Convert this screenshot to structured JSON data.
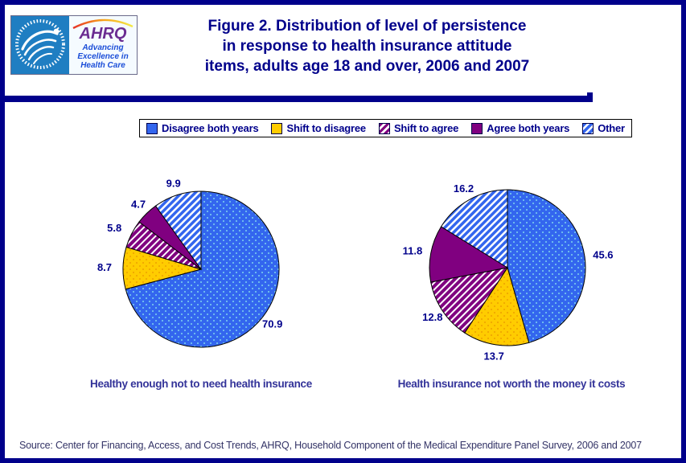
{
  "header": {
    "title_lines": [
      "Figure 2. Distribution of level of persistence",
      "in response to health insurance attitude",
      "items, adults age 18 and over, 2006 and 2007"
    ],
    "logo": {
      "seal_ring_text": "DEPARTMENT OF HEALTH & HUMAN SERVICES - USA",
      "wordmark": "AHRQ",
      "tagline_lines": [
        "Advancing",
        "Excellence in",
        "Health Care"
      ]
    }
  },
  "legend": {
    "items": [
      {
        "label": "Disagree both years",
        "swatch": "blue-solid"
      },
      {
        "label": "Shift to disagree",
        "swatch": "yellow-solid"
      },
      {
        "label": "Shift to agree",
        "swatch": "purple-stripe"
      },
      {
        "label": "Agree both years",
        "swatch": "purple-solid"
      },
      {
        "label": "Other",
        "swatch": "blue-stripe"
      }
    ]
  },
  "chart_data": [
    {
      "type": "pie",
      "title": "Healthy enough not to need health insurance",
      "categories": [
        "Disagree both years",
        "Shift to disagree",
        "Shift to agree",
        "Agree both years",
        "Other"
      ],
      "values": [
        70.9,
        8.7,
        5.8,
        4.7,
        9.9
      ],
      "start_angle": "12 o'clock",
      "direction": "clockwise",
      "data_labels": "outside"
    },
    {
      "type": "pie",
      "title": "Health insurance not worth the money it costs",
      "categories": [
        "Disagree both years",
        "Shift to disagree",
        "Shift to agree",
        "Agree both years",
        "Other"
      ],
      "values": [
        45.6,
        13.7,
        12.8,
        11.8,
        16.2
      ],
      "start_angle": "12 o'clock",
      "direction": "clockwise",
      "data_labels": "outside"
    }
  ],
  "source_note": "Source: Center for Financing, Access, and Cost Trends, AHRQ, Household Component of the Medical Expenditure Panel Survey,  2006 and 2007",
  "colors": {
    "navy": "#00008B",
    "pie_blue": "#3366EE",
    "pie_blue_dot": "#7FD4EE",
    "pie_yellow": "#FFCC00",
    "pie_yellow_dot": "#E89300",
    "pie_purple": "#800080",
    "stripe_white": "#FFFFFF",
    "hhs_blue": "#1F7EC2",
    "ahrq_purple": "#6A2C91",
    "tagline_blue": "#1B4ED8"
  }
}
